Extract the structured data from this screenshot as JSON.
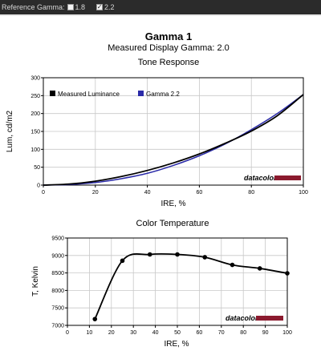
{
  "toolbar": {
    "label": "Reference Gamma:",
    "options": [
      {
        "label": "1.8",
        "checked": false
      },
      {
        "label": "2.2",
        "checked": true
      }
    ]
  },
  "header": {
    "title": "Gamma 1",
    "subtitle": "Measured Display Gamma: 2.0"
  },
  "watermark": "datacolor",
  "chart_data": [
    {
      "type": "line",
      "title": "Tone Response",
      "xlabel": "IRE, %",
      "ylabel": "Lum, cd/m2",
      "xlim": [
        0,
        100
      ],
      "ylim": [
        0,
        300
      ],
      "xticks": [
        0,
        20,
        40,
        60,
        80,
        100
      ],
      "yticks": [
        0,
        50,
        100,
        150,
        200,
        250,
        300
      ],
      "legend_position": "top-left",
      "series": [
        {
          "name": "Measured Luminance",
          "color": "#000000",
          "x": [
            0,
            10,
            20,
            30,
            40,
            50,
            60,
            70,
            80,
            90,
            100
          ],
          "y": [
            0,
            3,
            11,
            24,
            41,
            62,
            87,
            117,
            151,
            194,
            253
          ]
        },
        {
          "name": "Gamma 2.2",
          "color": "#2a2aa8",
          "x": [
            0,
            10,
            20,
            30,
            40,
            50,
            60,
            70,
            80,
            90,
            100
          ],
          "y": [
            0,
            1.6,
            7.2,
            18,
            33,
            55,
            82,
            115,
            155,
            200,
            253
          ]
        }
      ]
    },
    {
      "type": "line",
      "title": "Color Temperature",
      "xlabel": "IRE, %",
      "ylabel": "T, Kelvin",
      "xlim": [
        0,
        100
      ],
      "ylim": [
        7000,
        9500
      ],
      "xticks": [
        0,
        10,
        20,
        30,
        40,
        50,
        60,
        70,
        80,
        90,
        100
      ],
      "yticks": [
        7000,
        7500,
        8000,
        8500,
        9000,
        9500
      ],
      "series": [
        {
          "color": "#000000",
          "x": [
            12.5,
            25,
            37.5,
            50,
            62.5,
            75,
            87.5,
            100
          ],
          "y": [
            7180,
            8850,
            9030,
            9030,
            8950,
            8730,
            8630,
            8490
          ]
        }
      ]
    }
  ]
}
